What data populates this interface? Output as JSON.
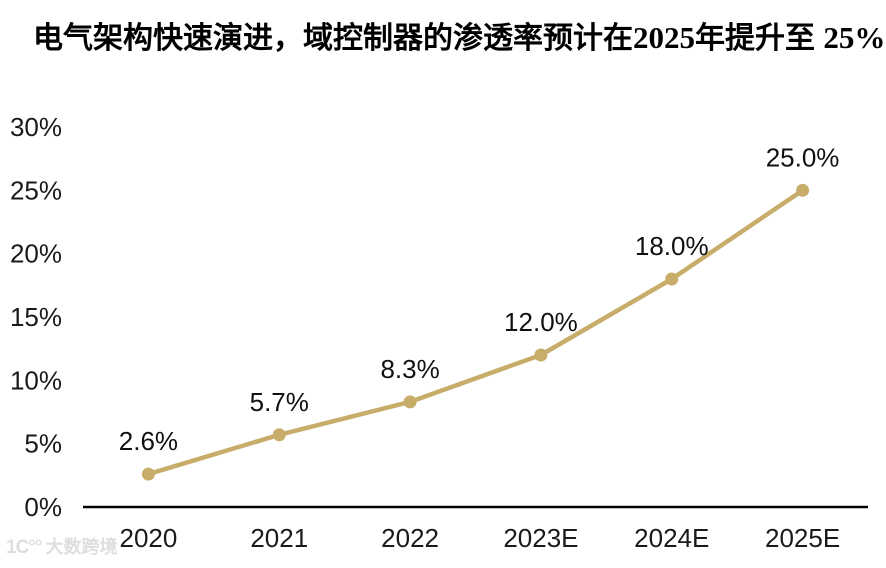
{
  "header": {
    "title_part1": "电气架构快速演进，域控制器的渗透率预计在",
    "title_num": "2025",
    "title_part2": "年提升至 ",
    "title_pct": "25%"
  },
  "watermark": {
    "logo": "1C°°",
    "brand": "大数跨境"
  },
  "chart_data": {
    "type": "line",
    "title": "电气架构快速演进，域控制器的渗透率预计在2025年提升至 25%",
    "categories": [
      "2020",
      "2021",
      "2022",
      "2023E",
      "2024E",
      "2025E"
    ],
    "values": [
      2.6,
      5.7,
      8.3,
      12.0,
      18.0,
      25.0
    ],
    "point_labels": [
      "2.6%",
      "5.7%",
      "8.3%",
      "12.0%",
      "18.0%",
      "25.0%"
    ],
    "yticks": [
      "0%",
      "5%",
      "10%",
      "15%",
      "20%",
      "25%",
      "30%"
    ],
    "ylim": [
      0,
      30
    ],
    "xlabel": "",
    "ylabel": "",
    "grid": false,
    "legend": false,
    "line_color": "#C8AD6A",
    "marker_color": "#C8AD6A",
    "axis_color": "#000000",
    "label_color": "#111111"
  }
}
